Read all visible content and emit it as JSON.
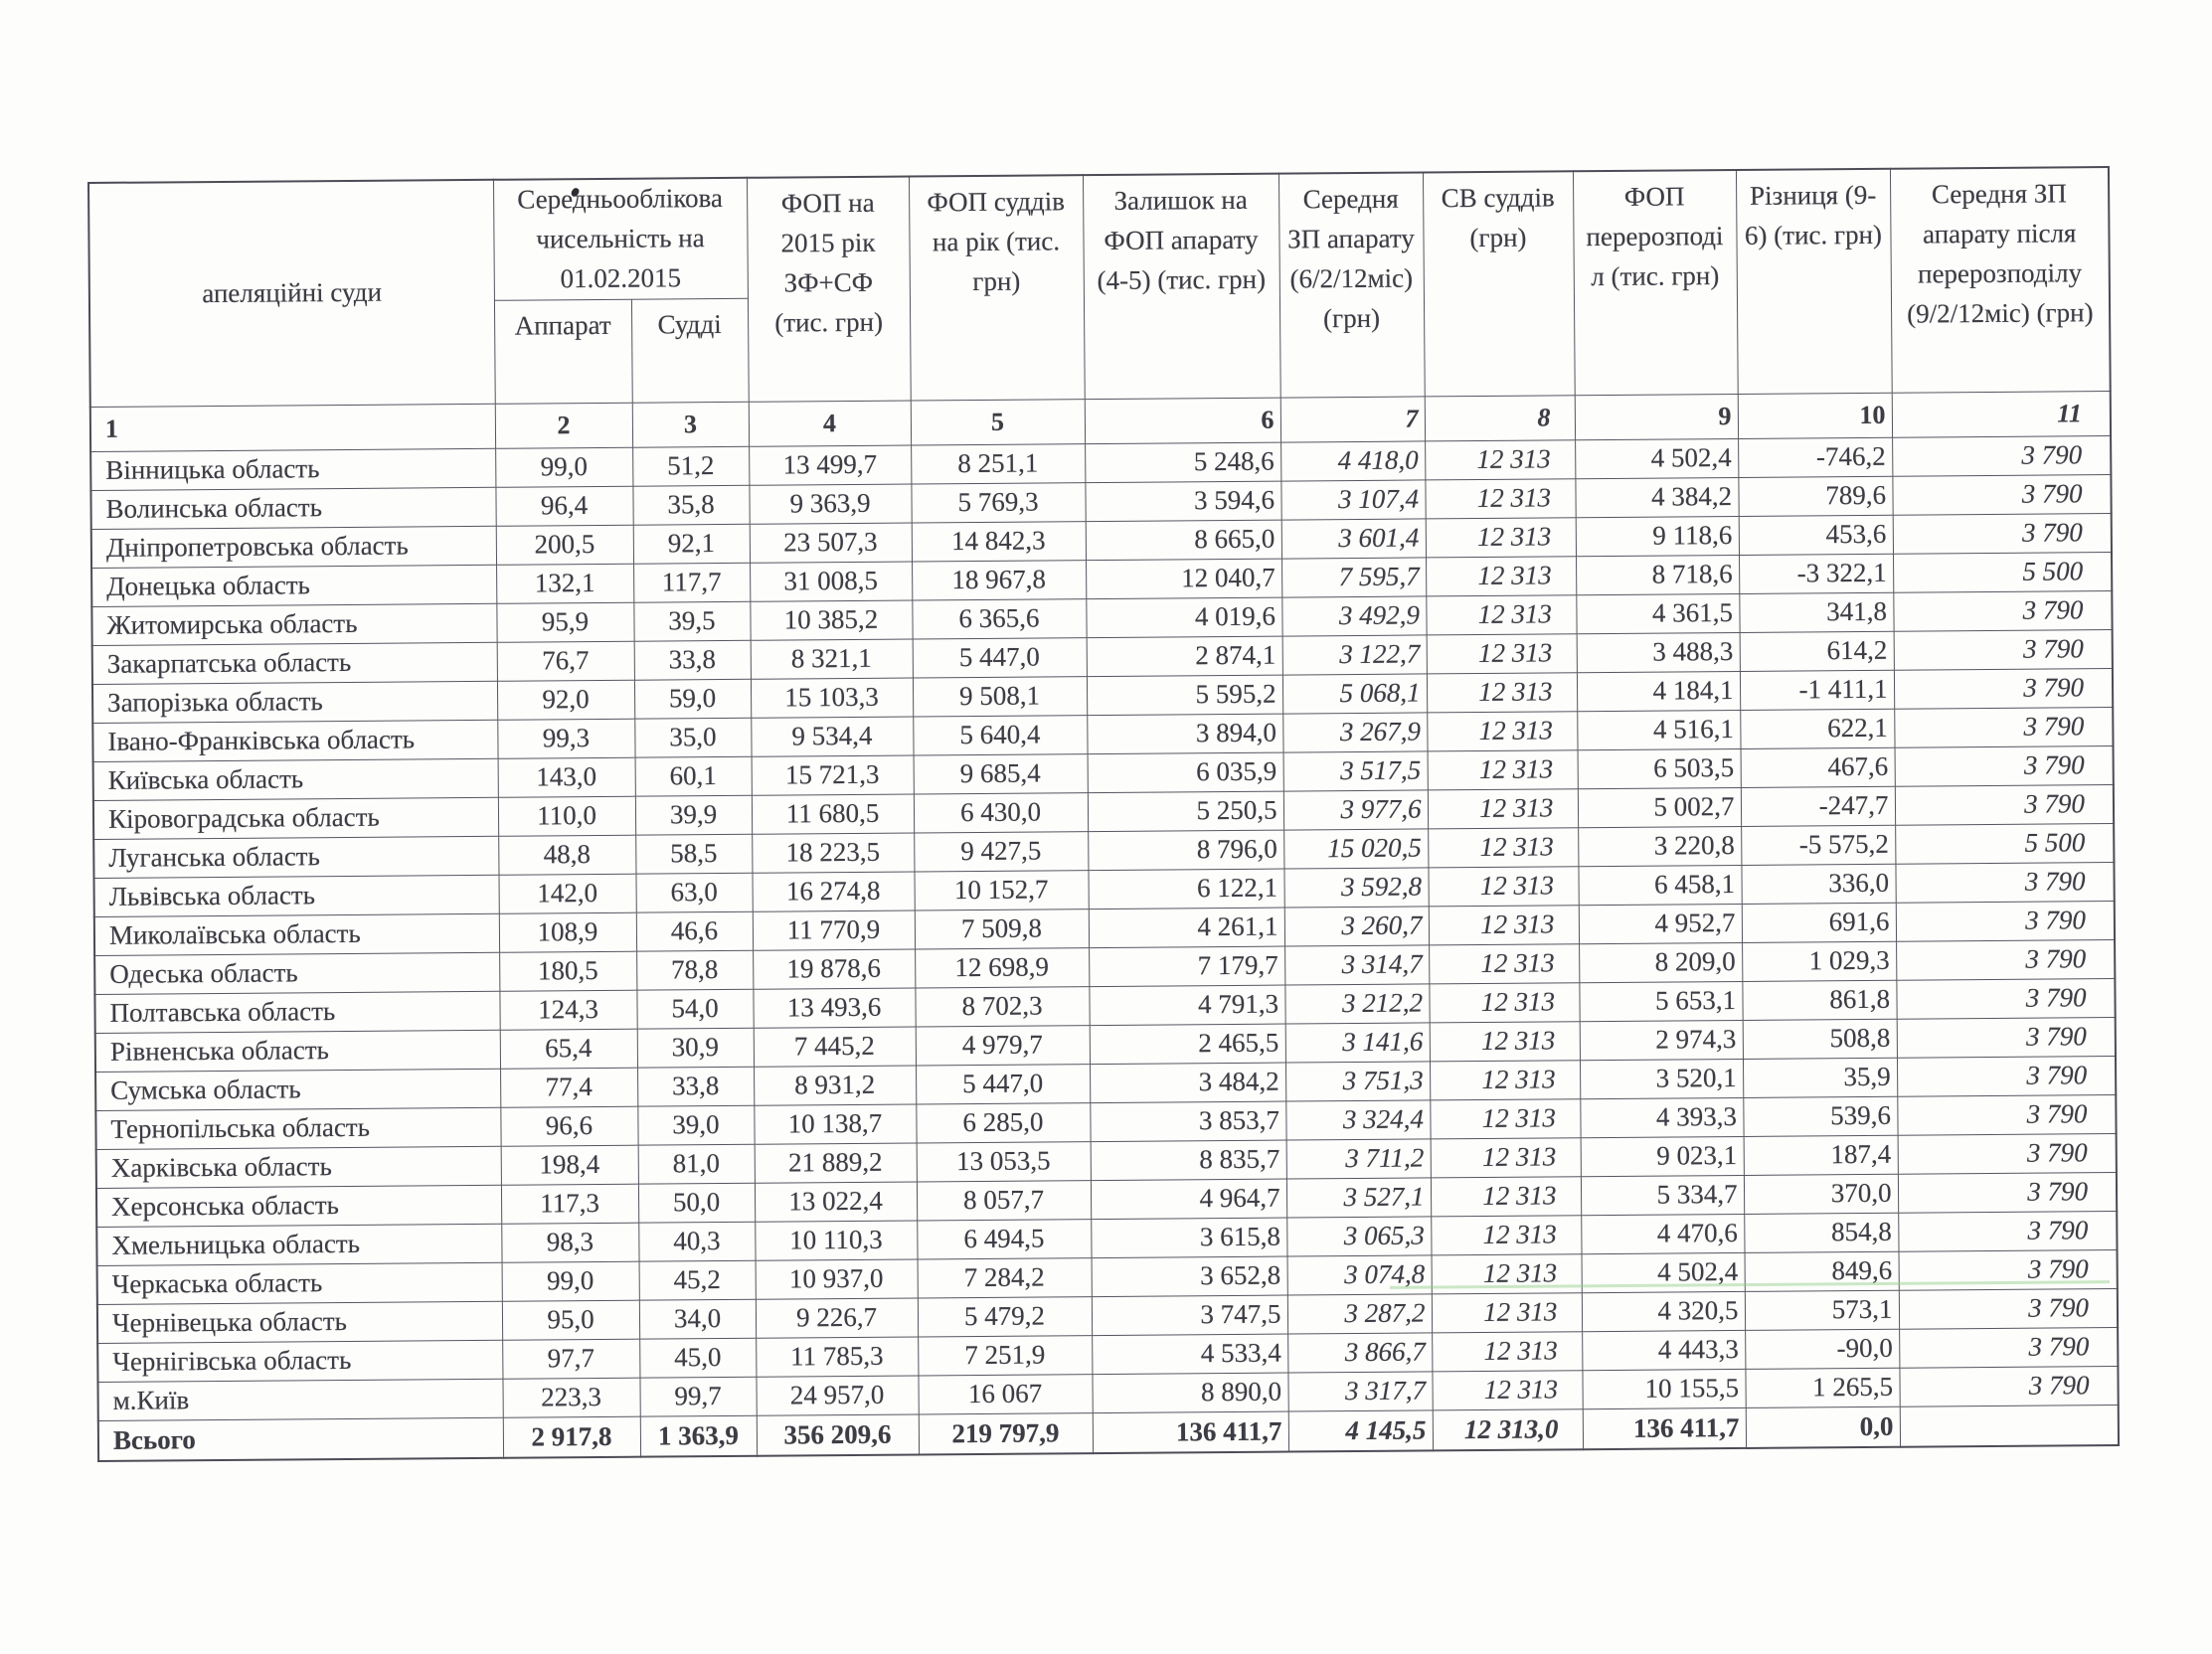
{
  "colors": {
    "paper": "#fdfdfb",
    "ink": "#3c3c44",
    "table_border": "#565660",
    "green_scan_streak": "#8ecd84"
  },
  "table": {
    "headers": {
      "col1": "апеляційні суди",
      "group23": "Середньооблікова чисельність на 01.02.2015",
      "col2": "Аппарат",
      "col3": "Судді",
      "col4": "ФОП на 2015 рік ЗФ+СФ (тис. грн)",
      "col5": "ФОП суддів на рік (тис. грн)",
      "col6": "Залишок на ФОП апарату (4-5) (тис. грн)",
      "col7": "Середня ЗП апарату (6/2/12міс) (грн)",
      "col8": "СВ суддів (грн)",
      "col9": "ФОП перерозподіл (тис. грн)",
      "col10": "Різниця (9-6) (тис. грн)",
      "col11": "Середня ЗП апарату після перерозподілу (9/2/12міс) (грн)"
    },
    "column_numbers": [
      "1",
      "2",
      "3",
      "4",
      "5",
      "6",
      "7",
      "8",
      "9",
      "10",
      "11"
    ],
    "rows": [
      [
        "Вінницька область",
        "99,0",
        "51,2",
        "13 499,7",
        "8 251,1",
        "5 248,6",
        "4 418,0",
        "12 313",
        "4 502,4",
        "-746,2",
        "3 790"
      ],
      [
        "Волинська область",
        "96,4",
        "35,8",
        "9 363,9",
        "5 769,3",
        "3 594,6",
        "3 107,4",
        "12 313",
        "4 384,2",
        "789,6",
        "3 790"
      ],
      [
        "Дніпропетровська область",
        "200,5",
        "92,1",
        "23 507,3",
        "14 842,3",
        "8 665,0",
        "3 601,4",
        "12 313",
        "9 118,6",
        "453,6",
        "3 790"
      ],
      [
        "Донецька область",
        "132,1",
        "117,7",
        "31 008,5",
        "18 967,8",
        "12 040,7",
        "7 595,7",
        "12 313",
        "8 718,6",
        "-3 322,1",
        "5 500"
      ],
      [
        "Житомирська область",
        "95,9",
        "39,5",
        "10 385,2",
        "6 365,6",
        "4 019,6",
        "3 492,9",
        "12 313",
        "4 361,5",
        "341,8",
        "3 790"
      ],
      [
        "Закарпатська область",
        "76,7",
        "33,8",
        "8 321,1",
        "5 447,0",
        "2 874,1",
        "3 122,7",
        "12 313",
        "3 488,3",
        "614,2",
        "3 790"
      ],
      [
        "Запорізька область",
        "92,0",
        "59,0",
        "15 103,3",
        "9 508,1",
        "5 595,2",
        "5 068,1",
        "12 313",
        "4 184,1",
        "-1 411,1",
        "3 790"
      ],
      [
        "Івано-Франківська область",
        "99,3",
        "35,0",
        "9 534,4",
        "5 640,4",
        "3 894,0",
        "3 267,9",
        "12 313",
        "4 516,1",
        "622,1",
        "3 790"
      ],
      [
        "Київська область",
        "143,0",
        "60,1",
        "15 721,3",
        "9 685,4",
        "6 035,9",
        "3 517,5",
        "12 313",
        "6 503,5",
        "467,6",
        "3 790"
      ],
      [
        "Кіровоградська область",
        "110,0",
        "39,9",
        "11 680,5",
        "6 430,0",
        "5 250,5",
        "3 977,6",
        "12 313",
        "5 002,7",
        "-247,7",
        "3 790"
      ],
      [
        "Луганська область",
        "48,8",
        "58,5",
        "18 223,5",
        "9 427,5",
        "8 796,0",
        "15 020,5",
        "12 313",
        "3 220,8",
        "-5 575,2",
        "5 500"
      ],
      [
        "Львівська область",
        "142,0",
        "63,0",
        "16 274,8",
        "10 152,7",
        "6 122,1",
        "3 592,8",
        "12 313",
        "6 458,1",
        "336,0",
        "3 790"
      ],
      [
        "Миколаївська область",
        "108,9",
        "46,6",
        "11 770,9",
        "7 509,8",
        "4 261,1",
        "3 260,7",
        "12 313",
        "4 952,7",
        "691,6",
        "3 790"
      ],
      [
        "Одеська область",
        "180,5",
        "78,8",
        "19 878,6",
        "12 698,9",
        "7 179,7",
        "3 314,7",
        "12 313",
        "8 209,0",
        "1 029,3",
        "3 790"
      ],
      [
        "Полтавська область",
        "124,3",
        "54,0",
        "13 493,6",
        "8 702,3",
        "4 791,3",
        "3 212,2",
        "12 313",
        "5 653,1",
        "861,8",
        "3 790"
      ],
      [
        "Рівненська область",
        "65,4",
        "30,9",
        "7 445,2",
        "4 979,7",
        "2 465,5",
        "3 141,6",
        "12 313",
        "2 974,3",
        "508,8",
        "3 790"
      ],
      [
        "Сумська область",
        "77,4",
        "33,8",
        "8 931,2",
        "5 447,0",
        "3 484,2",
        "3 751,3",
        "12 313",
        "3 520,1",
        "35,9",
        "3 790"
      ],
      [
        "Тернопільська область",
        "96,6",
        "39,0",
        "10 138,7",
        "6 285,0",
        "3 853,7",
        "3 324,4",
        "12 313",
        "4 393,3",
        "539,6",
        "3 790"
      ],
      [
        "Харківська область",
        "198,4",
        "81,0",
        "21 889,2",
        "13 053,5",
        "8 835,7",
        "3 711,2",
        "12 313",
        "9 023,1",
        "187,4",
        "3 790"
      ],
      [
        "Херсонська область",
        "117,3",
        "50,0",
        "13 022,4",
        "8 057,7",
        "4 964,7",
        "3 527,1",
        "12 313",
        "5 334,7",
        "370,0",
        "3 790"
      ],
      [
        "Хмельницька область",
        "98,3",
        "40,3",
        "10 110,3",
        "6 494,5",
        "3 615,8",
        "3 065,3",
        "12 313",
        "4 470,6",
        "854,8",
        "3 790"
      ],
      [
        "Черкаська область",
        "99,0",
        "45,2",
        "10 937,0",
        "7 284,2",
        "3 652,8",
        "3 074,8",
        "12 313",
        "4 502,4",
        "849,6",
        "3 790"
      ],
      [
        "Чернівецька область",
        "95,0",
        "34,0",
        "9 226,7",
        "5 479,2",
        "3 747,5",
        "3 287,2",
        "12 313",
        "4 320,5",
        "573,1",
        "3 790"
      ],
      [
        "Чернігівська область",
        "97,7",
        "45,0",
        "11 785,3",
        "7 251,9",
        "4 533,4",
        "3 866,7",
        "12 313",
        "4 443,3",
        "-90,0",
        "3 790"
      ],
      [
        "м.Київ",
        "223,3",
        "99,7",
        "24 957,0",
        "16 067",
        "8 890,0",
        "3 317,7",
        "12 313",
        "10 155,5",
        "1 265,5",
        "3 790"
      ]
    ],
    "total_row": [
      "Всього",
      "2 917,8",
      "1 363,9",
      "356 209,6",
      "219 797,9",
      "136 411,7",
      "4 145,5",
      "12 313,0",
      "136 411,7",
      "0,0",
      ""
    ]
  }
}
